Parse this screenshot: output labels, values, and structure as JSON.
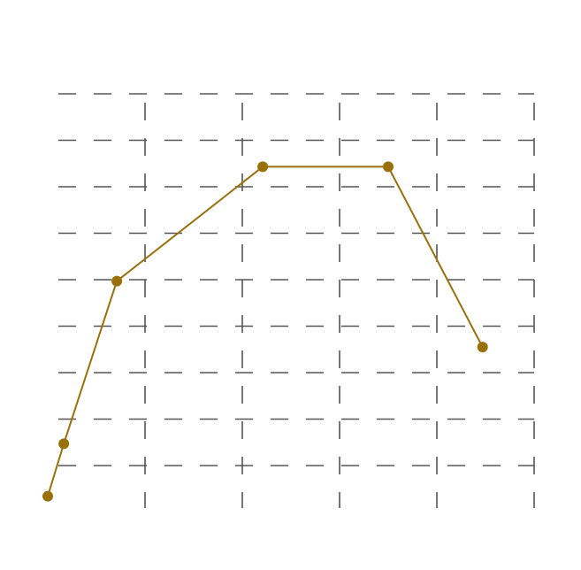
{
  "chart_data": {
    "type": "line",
    "title": "",
    "xlabel": "",
    "ylabel": "",
    "xlim": [
      0,
      10
    ],
    "ylim": [
      0,
      8
    ],
    "grid": true,
    "legend": "none",
    "series": [
      {
        "x": [
          0.0,
          0.33,
          1.42,
          4.42,
          7.0,
          8.94
        ],
        "y": [
          -0.66,
          0.47,
          3.97,
          6.43,
          6.43,
          2.55
        ],
        "color": "#99700a"
      }
    ]
  }
}
